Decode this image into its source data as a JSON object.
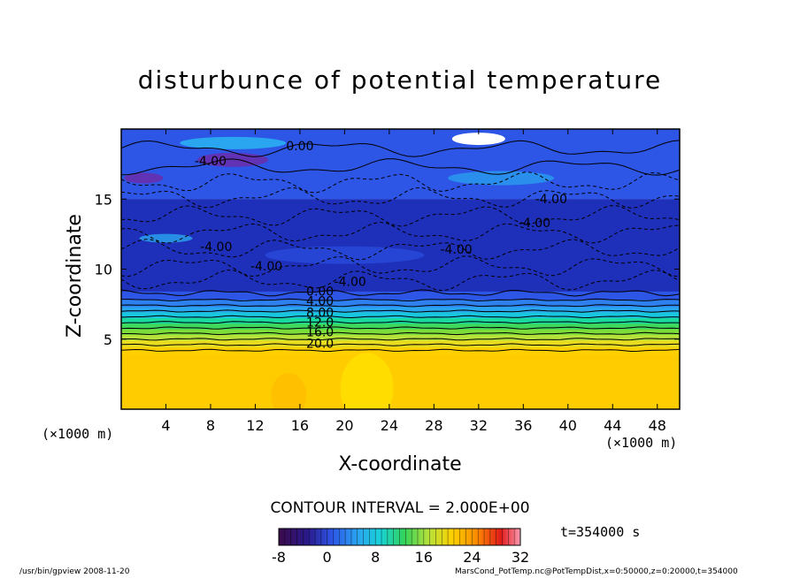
{
  "chart_data": {
    "type": "heatmap",
    "title": "disturbunce of potential temperature",
    "xlabel": "X-coordinate",
    "ylabel": "Z-coordinate",
    "x_unit": "(×1000 m)",
    "x_unit_right": "(×1000 m)",
    "xlim": [
      0,
      50
    ],
    "ylim": [
      0,
      20
    ],
    "x_ticks": [
      4,
      8,
      12,
      16,
      20,
      24,
      28,
      32,
      36,
      40,
      44,
      48
    ],
    "y_ticks": [
      5,
      10,
      15
    ],
    "contour_interval": "CONTOUR INTERVAL = 2.000E+00",
    "time_label": "t=354000 s",
    "colorbar": {
      "range": [
        -8,
        32
      ],
      "ticks": [
        -8,
        0,
        8,
        16,
        24,
        32
      ]
    },
    "contour_labels": [
      "0.00",
      "4.00",
      "8.00",
      "12.0",
      "16.0",
      "20.0",
      "-4.00",
      "-4.00",
      "-4.00",
      "-4.00",
      "-4.00",
      "-4.00",
      "-4.00",
      "0.00"
    ],
    "layers": [
      {
        "z_range": [
          0,
          4
        ],
        "value": 22
      },
      {
        "z_range": [
          4,
          5
        ],
        "value": 18
      },
      {
        "z_range": [
          5,
          6
        ],
        "value": 12
      },
      {
        "z_range": [
          6,
          7
        ],
        "value": 6
      },
      {
        "z_range": [
          7,
          8
        ],
        "value": 1
      },
      {
        "z_range": [
          8,
          15
        ],
        "value": -4
      },
      {
        "z_range": [
          15,
          20
        ],
        "value": -2
      }
    ]
  },
  "footer": {
    "left": "/usr/bin/gpview   2008-11-20",
    "right": "MarsCond_PotTemp.nc@PotTempDist,x=0:50000,z=0:20000,t=354000"
  },
  "colors": {
    "deep_blue": "#1e2fb8",
    "mid_blue": "#2d55e6",
    "light_blue": "#2aa6f0",
    "cyan": "#19d1d8",
    "green": "#33d35a",
    "yellow_green": "#b6e13a",
    "yellow": "#ffd000",
    "purple": "#6e2aa8",
    "white": "#ffffff"
  }
}
